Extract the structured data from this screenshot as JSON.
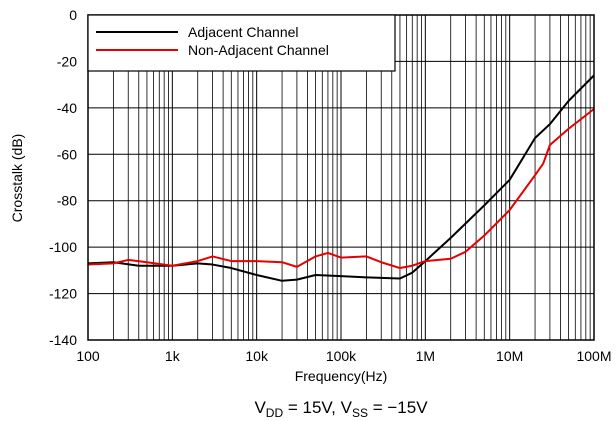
{
  "chart_data": {
    "type": "line",
    "title": "",
    "xlabel": "Frequency(Hz)",
    "ylabel": "Crosstalk (dB)",
    "x_scale": "log",
    "xlim": [
      100,
      100000000
    ],
    "ylim": [
      -140,
      0
    ],
    "grid": true,
    "legend_position": "top-left",
    "x_ticks": [
      {
        "value": 100,
        "label": "100"
      },
      {
        "value": 1000,
        "label": "1k"
      },
      {
        "value": 10000,
        "label": "10k"
      },
      {
        "value": 100000,
        "label": "100k"
      },
      {
        "value": 1000000,
        "label": "1M"
      },
      {
        "value": 10000000,
        "label": "10M"
      },
      {
        "value": 100000000,
        "label": "100M"
      }
    ],
    "y_ticks": [
      {
        "value": 0,
        "label": "0"
      },
      {
        "value": -20,
        "label": "-20"
      },
      {
        "value": -40,
        "label": "-40"
      },
      {
        "value": -60,
        "label": "-60"
      },
      {
        "value": -80,
        "label": "-80"
      },
      {
        "value": -100,
        "label": "-100"
      },
      {
        "value": -120,
        "label": "-120"
      },
      {
        "value": -140,
        "label": "-140"
      }
    ],
    "series": [
      {
        "name": "Adjacent Channel",
        "color": "#000000",
        "x": [
          100,
          200,
          400,
          1000,
          2000,
          3000,
          5000,
          10000,
          20000,
          30000,
          50000,
          100000,
          200000,
          500000,
          700000,
          1000000,
          2000000,
          5000000,
          10000000,
          20000000,
          30000000,
          50000000,
          100000000
        ],
        "y": [
          -107,
          -106.5,
          -108,
          -108,
          -107,
          -107.5,
          -109,
          -112,
          -114.5,
          -114,
          -112,
          -112.5,
          -113,
          -113.5,
          -111,
          -106,
          -96,
          -82,
          -71,
          -53,
          -47,
          -37,
          -26
        ]
      },
      {
        "name": "Non-Adjacent Channel",
        "color": "#e60000",
        "x": [
          100,
          200,
          300,
          500,
          1000,
          2000,
          3000,
          5000,
          10000,
          20000,
          30000,
          50000,
          70000,
          100000,
          200000,
          300000,
          500000,
          700000,
          1000000,
          2000000,
          3000000,
          5000000,
          10000000,
          20000000,
          25000000,
          30000000,
          50000000,
          100000000
        ],
        "y": [
          -107.5,
          -107,
          -105.5,
          -106.5,
          -108,
          -106,
          -104,
          -106,
          -106,
          -106.5,
          -108.5,
          -104,
          -102.5,
          -104.5,
          -104,
          -106.5,
          -109,
          -108,
          -106,
          -105,
          -102,
          -95,
          -84,
          -69,
          -64,
          -56,
          -49,
          -40.5
        ]
      }
    ]
  },
  "caption": {
    "v": "V",
    "dd": "DD",
    "mid": " = 15V, V",
    "ss": "SS",
    "end": " = −15V"
  }
}
